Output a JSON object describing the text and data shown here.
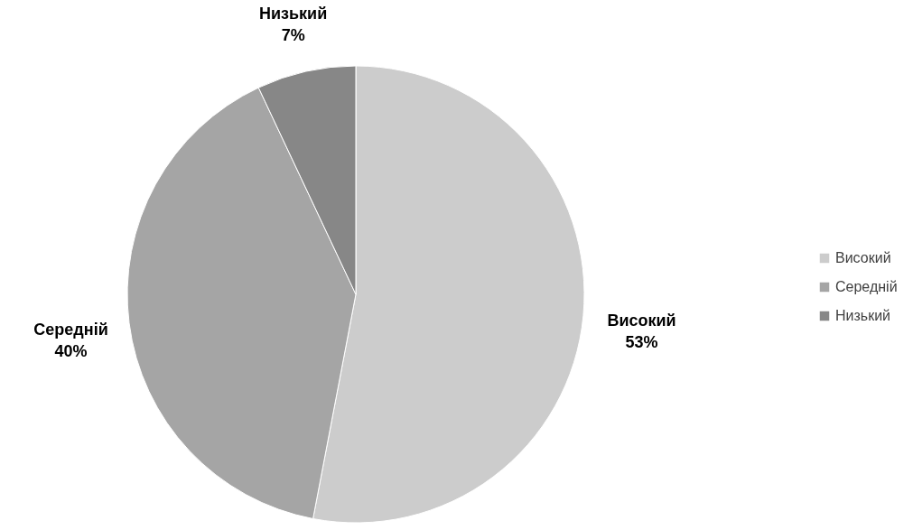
{
  "chart_data": {
    "type": "pie",
    "categories": [
      "Високий",
      "Середній",
      "Низький"
    ],
    "values": [
      53,
      40,
      7
    ],
    "value_labels": [
      "53%",
      "40%",
      "7%"
    ],
    "colors": [
      "#cccccc",
      "#a5a5a5",
      "#878787"
    ],
    "legend": "right"
  }
}
